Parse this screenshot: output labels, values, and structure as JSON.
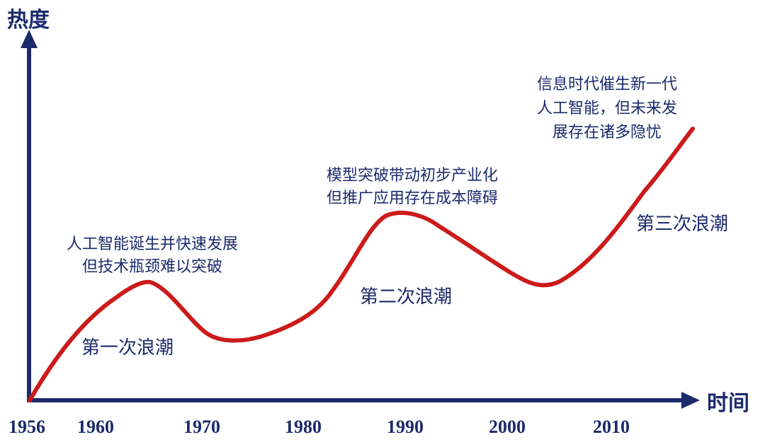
{
  "axes": {
    "y_title": "热度",
    "x_title": "时间",
    "axis_color": "#1b2a6b"
  },
  "curve": {
    "color": "#cc1a1a"
  },
  "x_ticks": [
    "1956",
    "1960",
    "1970",
    "1980",
    "1990",
    "2000",
    "2010"
  ],
  "waves": [
    "第一次浪潮",
    "第二次浪潮",
    "第三次浪潮"
  ],
  "annotations": {
    "first": [
      "人工智能诞生并快速发展",
      "但技术瓶颈难以突破"
    ],
    "second": [
      "模型突破带动初步产业化",
      "但推广应用存在成本障碍"
    ],
    "third": [
      "信息时代催生新一代",
      "人工智能，但未来发",
      "展存在诸多隐忧"
    ]
  }
}
